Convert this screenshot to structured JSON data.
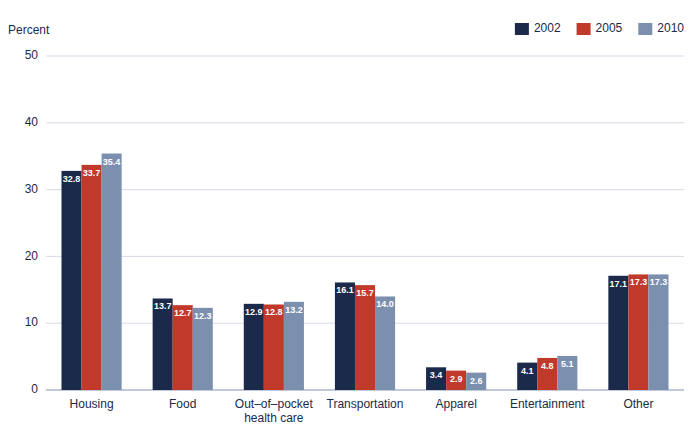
{
  "chart_data": {
    "type": "bar",
    "y_label": "Percent",
    "categories": [
      "Housing",
      "Food",
      "Out–of–pocket\nhealth care",
      "Transportation",
      "Apparel",
      "Entertainment",
      "Other"
    ],
    "series": [
      {
        "name": "2002",
        "color": "#1b2a4a",
        "values": [
          32.8,
          13.7,
          12.9,
          16.1,
          3.4,
          4.1,
          17.1
        ],
        "value_labels": [
          "32.8",
          "13.7",
          "12.9",
          "16.1",
          "3.4",
          "4.1",
          "17.1"
        ]
      },
      {
        "name": "2005",
        "color": "#c0392b",
        "values": [
          33.7,
          12.7,
          12.8,
          15.7,
          2.9,
          4.8,
          17.3
        ],
        "value_labels": [
          "33.7",
          "12.7",
          "12.8",
          "15.7",
          "2.9",
          "4.8",
          "17.3"
        ]
      },
      {
        "name": "2010",
        "color": "#7b8faf",
        "values": [
          35.4,
          12.3,
          13.2,
          14.0,
          2.6,
          5.1,
          17.3
        ],
        "value_labels": [
          "35.4",
          "12.3",
          "13.2",
          "14.0",
          "2.6",
          "5.1",
          "17.3"
        ]
      }
    ],
    "ylim": [
      0,
      50
    ],
    "yticks": [
      0,
      10,
      20,
      30,
      40,
      50
    ],
    "grid": true,
    "legend": "top-right",
    "data_labels": true
  }
}
